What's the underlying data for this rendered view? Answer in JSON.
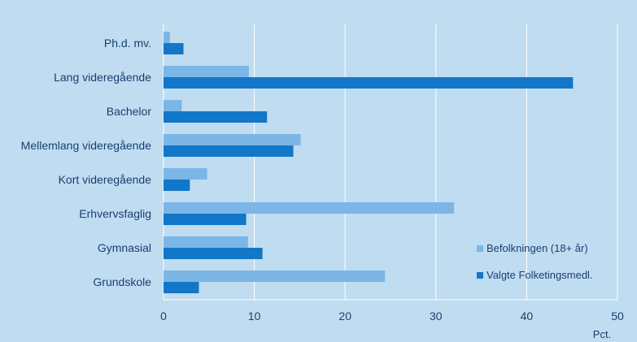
{
  "chart_data": {
    "type": "bar",
    "orientation": "horizontal",
    "categories": [
      "Ph.d. mv.",
      "Lang videregående",
      "Bachelor",
      "Mellemlang videregående",
      "Kort videregående",
      "Erhvervsfaglig",
      "Gymnasial",
      "Grundskole"
    ],
    "series": [
      {
        "name": "Befolkningen (18+ år)",
        "color": "#7bb6e6",
        "values": [
          0.7,
          9.4,
          2.0,
          15.1,
          4.8,
          32.0,
          9.3,
          24.4
        ]
      },
      {
        "name": "Valgte Folketingsmedl.",
        "color": "#1277c8",
        "values": [
          2.2,
          45.1,
          11.4,
          14.3,
          2.9,
          9.1,
          10.9,
          3.9
        ]
      }
    ],
    "xlim": [
      0,
      50
    ],
    "xticks": [
      0,
      10,
      20,
      30,
      40,
      50
    ],
    "xlabel": "Pct.",
    "grid": true,
    "legend_position": "bottom-right"
  }
}
